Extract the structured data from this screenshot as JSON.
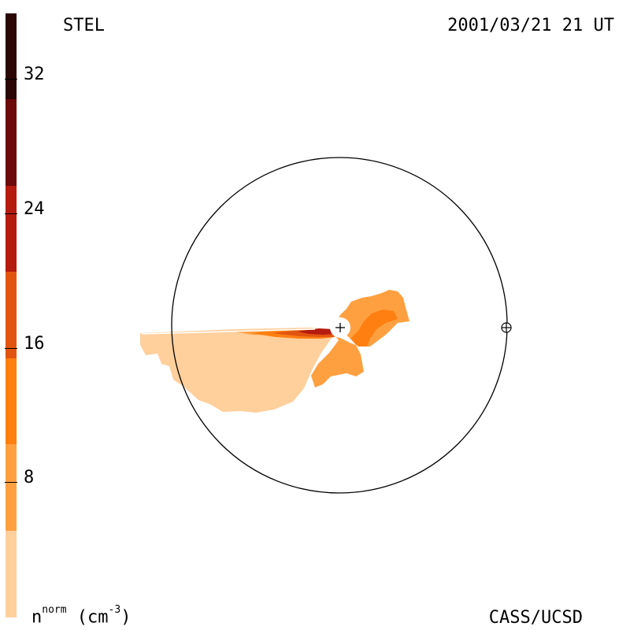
{
  "header": {
    "site": "STEL",
    "datetime": "2001/03/21 21 UT"
  },
  "footer": {
    "units_base": "n",
    "units_sup": "norm",
    "units_rest": " (cm",
    "units_exp": "-3",
    "units_close": ")",
    "credit": "CASS/UCSD"
  },
  "colorbar": {
    "tick_labels": [
      "32",
      "24",
      "16",
      "8"
    ],
    "segments": [
      {
        "color": "#2a0605"
      },
      {
        "color": "#6b0a08"
      },
      {
        "color": "#b51b0e"
      },
      {
        "color": "#e25510"
      },
      {
        "color": "#ff7f11"
      },
      {
        "color": "#ffa040"
      },
      {
        "color": "#ffcf9c"
      }
    ]
  },
  "map": {
    "center_marker": "+",
    "earth_symbol": "⊕",
    "colors": {
      "level_1": "#ffcf9c",
      "level_2": "#ffa040",
      "level_3": "#ff7f11",
      "level_4": "#e25510",
      "level_5": "#b51b0e",
      "outline": "#000000"
    }
  }
}
